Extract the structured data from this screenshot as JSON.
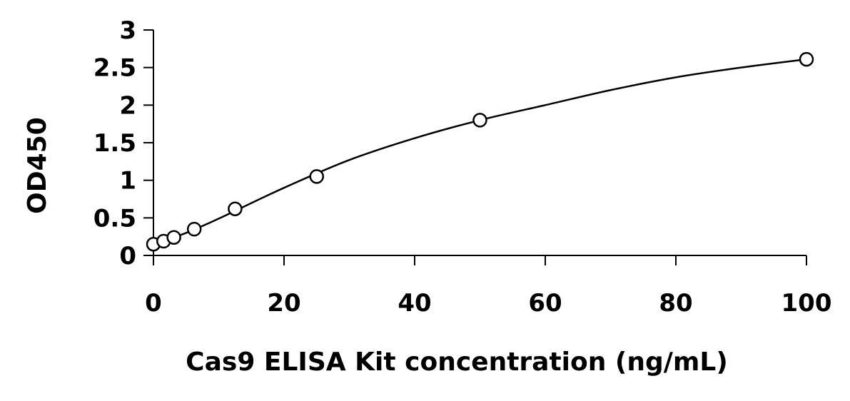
{
  "chart_data": {
    "type": "scatter",
    "title": "",
    "xlabel": "Cas9 ELISA Kit concentration (ng/mL)",
    "ylabel": "OD450",
    "xlim": [
      0,
      100
    ],
    "ylim": [
      0,
      3
    ],
    "x_ticks": [
      "0",
      "20",
      "40",
      "60",
      "80",
      "100"
    ],
    "y_ticks": [
      "0",
      "0.5",
      "1",
      "1.5",
      "2",
      "2.5",
      "3"
    ],
    "grid": false,
    "legend": "none",
    "series": [
      {
        "marker": "open-circle",
        "x": [
          0,
          1.56,
          3.13,
          6.25,
          12.5,
          25,
          50,
          100
        ],
        "y": [
          0.15,
          0.19,
          0.24,
          0.35,
          0.62,
          1.05,
          1.8,
          2.61
        ]
      }
    ],
    "fit_curve": {
      "x": [
        0,
        5,
        10,
        20,
        30,
        40,
        50,
        60,
        70,
        80,
        90,
        100
      ],
      "y": [
        0.15,
        0.3,
        0.49,
        0.9,
        1.27,
        1.56,
        1.8,
        2.0,
        2.2,
        2.37,
        2.5,
        2.61
      ]
    },
    "colors": {
      "axis": "#000000",
      "marker": "#000000",
      "curve": "#000000"
    }
  }
}
